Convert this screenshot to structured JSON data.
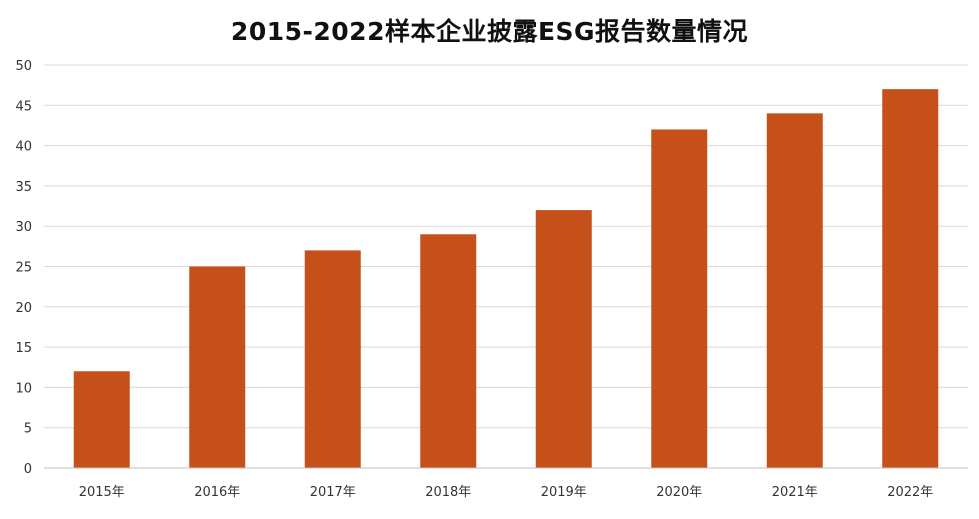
{
  "chart_data": {
    "type": "bar",
    "title": "2015-2022样本企业披露ESG报告数量情况",
    "xlabel": "",
    "ylabel": "",
    "categories": [
      "2015年",
      "2016年",
      "2017年",
      "2018年",
      "2019年",
      "2020年",
      "2021年",
      "2022年"
    ],
    "values": [
      12,
      25,
      27,
      29,
      32,
      42,
      44,
      47
    ],
    "ylim": [
      0,
      50
    ],
    "yticks": [
      0,
      5,
      10,
      15,
      20,
      25,
      30,
      35,
      40,
      45,
      50
    ],
    "grid": true,
    "legend": "none",
    "bar_color": "#c5501a"
  }
}
